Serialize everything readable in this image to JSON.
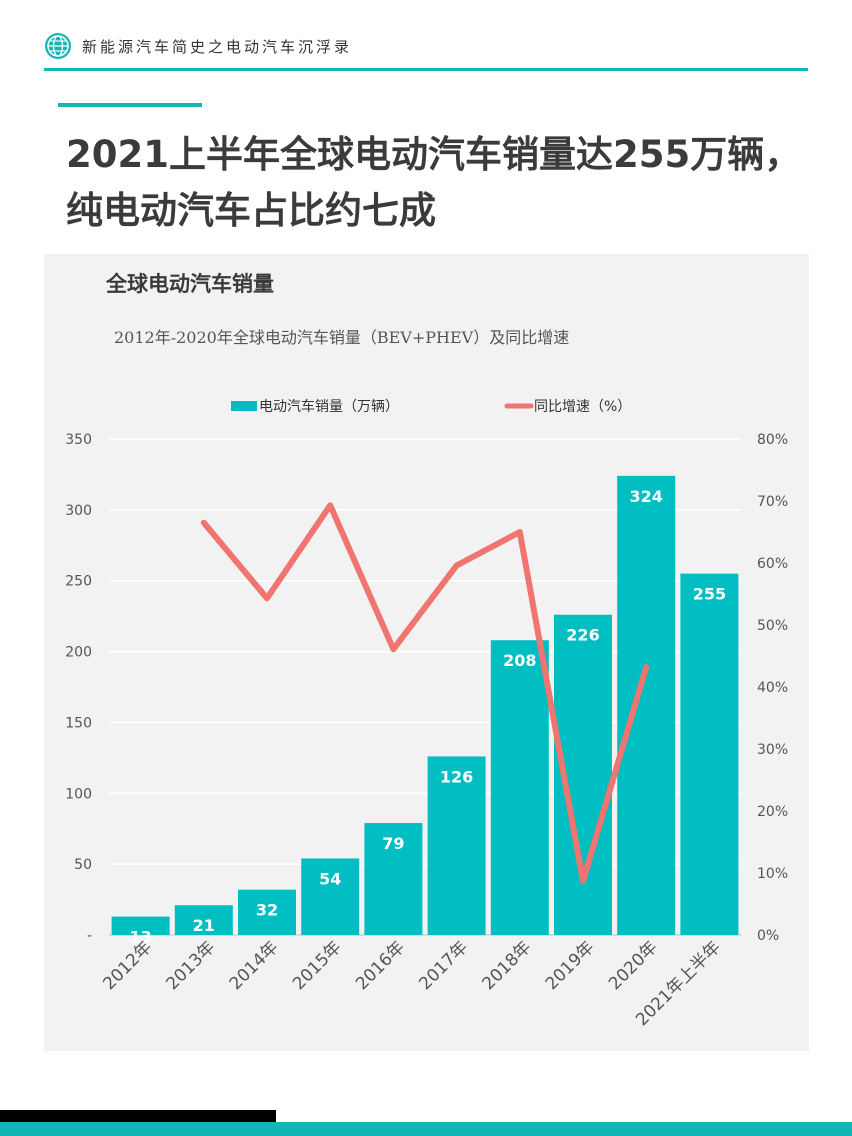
{
  "header": {
    "text": "新能源汽车简史之电动汽车沉浮录",
    "icon": "globe-icon"
  },
  "title": {
    "line1": "2021上半年全球电动汽车销量达255万辆，",
    "line2": "纯电动汽车占比约七成"
  },
  "chart_heading": "全球电动汽车销量",
  "colors": {
    "accent": "#13b6b6",
    "bar": "#00bec2",
    "line": "#f07470"
  },
  "chart_data": {
    "type": "bar+line",
    "title": "2012年-2020年全球电动汽车销量（BEV+PHEV）及同比增速",
    "categories": [
      "2012年",
      "2013年",
      "2014年",
      "2015年",
      "2016年",
      "2017年",
      "2018年",
      "2019年",
      "2020年",
      "2021年上半年"
    ],
    "series": [
      {
        "name": "电动汽车销量（万辆）",
        "type": "bar",
        "axis": "left",
        "values": [
          13,
          21,
          32,
          54,
          79,
          126,
          208,
          226,
          324,
          255
        ]
      },
      {
        "name": "同比增速（%）",
        "type": "line",
        "axis": "right",
        "values": [
          null,
          66.5,
          54.3,
          69.3,
          46.1,
          59.6,
          65.0,
          8.7,
          43.2,
          null
        ]
      }
    ],
    "y_left": {
      "min": 0,
      "max": 350,
      "ticks": [
        "-",
        "50",
        "100",
        "150",
        "200",
        "250",
        "300",
        "350"
      ]
    },
    "y_right": {
      "min": 0,
      "max": 80,
      "ticks": [
        "0%",
        "10%",
        "20%",
        "30%",
        "40%",
        "50%",
        "60%",
        "70%",
        "80%"
      ]
    },
    "grid": true,
    "legend": "top-center"
  }
}
